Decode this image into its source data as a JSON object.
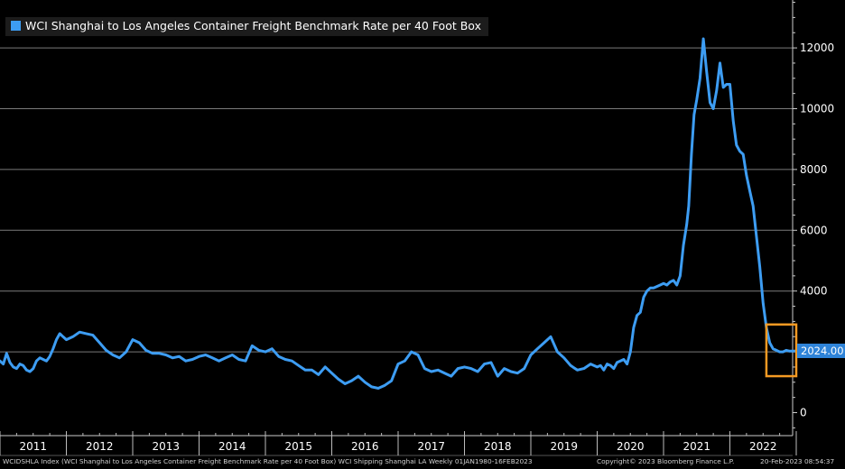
{
  "legend": {
    "label": "WCI Shanghai to Los Angeles Container Freight Benchmark Rate per 40 Foot Box",
    "swatch_color": "#3d9df3"
  },
  "last_value_label": "2024.00",
  "footer": {
    "source": "WCIDSHLA Index (WCI Shanghai to Los Angeles Container Freight Benchmark Rate per 40 Foot Box) WCI Shipping Shanghai LA  Weekly 01JAN1980-16FEB2023",
    "copyright": "Copyright© 2023 Bloomberg Finance L.P.",
    "timestamp": "20-Feb-2023 08:54:37"
  },
  "colors": {
    "background": "#000000",
    "line": "#3d9df3",
    "gridline": "#7a7a7a",
    "highlight_box": "#f59a23"
  },
  "chart_data": {
    "type": "line",
    "title": "",
    "xlabel": "",
    "ylabel": "",
    "y_axis_side": "right",
    "ylim": [
      -100,
      13600
    ],
    "xlim": [
      2011.0,
      2023.2
    ],
    "y_ticks": [
      0,
      2000,
      4000,
      6000,
      8000,
      10000,
      12000
    ],
    "y_tick_labels": [
      "0",
      "2000",
      "4000",
      "6000",
      "8000",
      "10000",
      "12000"
    ],
    "x_tick_labels": [
      "2011",
      "2012",
      "2013",
      "2014",
      "2015",
      "2016",
      "2017",
      "2018",
      "2019",
      "2020",
      "2021",
      "2022"
    ],
    "x_tick_centers": [
      2011.5,
      2012.5,
      2013.5,
      2014.5,
      2015.5,
      2016.5,
      2017.5,
      2018.5,
      2019.5,
      2020.5,
      2021.5,
      2022.5
    ],
    "grid": true,
    "legend_position": "top-left",
    "last_value": 2024.0,
    "highlight_box": {
      "x_range": [
        2022.55,
        2023.0
      ],
      "y_range": [
        1200,
        2900
      ]
    },
    "series": [
      {
        "name": "WCI Shanghai to Los Angeles Container Freight Benchmark Rate per 40 Foot Box",
        "x": [
          2011.0,
          2011.05,
          2011.1,
          2011.15,
          2011.2,
          2011.25,
          2011.3,
          2011.35,
          2011.4,
          2011.45,
          2011.5,
          2011.55,
          2011.6,
          2011.65,
          2011.7,
          2011.75,
          2011.8,
          2011.85,
          2011.9,
          2011.95,
          2012.0,
          2012.1,
          2012.2,
          2012.3,
          2012.4,
          2012.5,
          2012.6,
          2012.7,
          2012.8,
          2012.9,
          2013.0,
          2013.1,
          2013.2,
          2013.3,
          2013.4,
          2013.5,
          2013.6,
          2013.7,
          2013.8,
          2013.9,
          2014.0,
          2014.1,
          2014.2,
          2014.3,
          2014.4,
          2014.5,
          2014.6,
          2014.7,
          2014.8,
          2014.9,
          2015.0,
          2015.1,
          2015.2,
          2015.3,
          2015.4,
          2015.5,
          2015.6,
          2015.7,
          2015.8,
          2015.9,
          2016.0,
          2016.1,
          2016.2,
          2016.3,
          2016.4,
          2016.5,
          2016.6,
          2016.7,
          2016.8,
          2016.9,
          2017.0,
          2017.1,
          2017.2,
          2017.3,
          2017.4,
          2017.5,
          2017.6,
          2017.7,
          2017.8,
          2017.9,
          2018.0,
          2018.1,
          2018.2,
          2018.3,
          2018.4,
          2018.5,
          2018.6,
          2018.7,
          2018.8,
          2018.9,
          2019.0,
          2019.1,
          2019.2,
          2019.3,
          2019.4,
          2019.5,
          2019.6,
          2019.7,
          2019.8,
          2019.9,
          2020.0,
          2020.05,
          2020.1,
          2020.15,
          2020.2,
          2020.25,
          2020.3,
          2020.35,
          2020.4,
          2020.45,
          2020.5,
          2020.55,
          2020.6,
          2020.65,
          2020.7,
          2020.75,
          2020.8,
          2020.85,
          2020.9,
          2020.95,
          2021.0,
          2021.05,
          2021.1,
          2021.15,
          2021.2,
          2021.25,
          2021.3,
          2021.35,
          2021.38,
          2021.42,
          2021.46,
          2021.5,
          2021.55,
          2021.6,
          2021.65,
          2021.7,
          2021.75,
          2021.8,
          2021.85,
          2021.9,
          2021.95,
          2022.0,
          2022.05,
          2022.1,
          2022.15,
          2022.2,
          2022.25,
          2022.3,
          2022.35,
          2022.4,
          2022.45,
          2022.5,
          2022.55,
          2022.6,
          2022.65,
          2022.7,
          2022.75,
          2022.8,
          2022.85,
          2022.9,
          2022.95,
          2023.0,
          2023.05,
          2023.1
        ],
        "y": [
          1700,
          1600,
          1950,
          1650,
          1500,
          1450,
          1600,
          1550,
          1400,
          1350,
          1450,
          1700,
          1800,
          1750,
          1700,
          1850,
          2100,
          2400,
          2600,
          2500,
          2400,
          2500,
          2650,
          2600,
          2550,
          2300,
          2050,
          1900,
          1800,
          2000,
          2400,
          2300,
          2050,
          1950,
          1950,
          1900,
          1800,
          1850,
          1700,
          1750,
          1850,
          1900,
          1800,
          1700,
          1800,
          1900,
          1750,
          1700,
          2200,
          2050,
          2000,
          2100,
          1850,
          1750,
          1700,
          1550,
          1400,
          1400,
          1250,
          1500,
          1300,
          1100,
          950,
          1050,
          1200,
          1000,
          850,
          800,
          900,
          1050,
          1600,
          1700,
          2000,
          1900,
          1450,
          1350,
          1400,
          1300,
          1200,
          1450,
          1500,
          1450,
          1350,
          1600,
          1650,
          1200,
          1450,
          1350,
          1300,
          1450,
          1900,
          2100,
          2300,
          2500,
          2000,
          1800,
          1550,
          1400,
          1450,
          1600,
          1500,
          1550,
          1400,
          1600,
          1550,
          1450,
          1650,
          1700,
          1750,
          1600,
          2000,
          2800,
          3200,
          3300,
          3800,
          4000,
          4100,
          4100,
          4150,
          4200,
          4250,
          4200,
          4300,
          4350,
          4200,
          4500,
          5500,
          6200,
          6800,
          8500,
          9800,
          10300,
          11000,
          12300,
          11200,
          10200,
          10000,
          10600,
          11500,
          10700,
          10800,
          10800,
          9600,
          8800,
          8600,
          8500,
          7800,
          7300,
          6800,
          5800,
          4800,
          3600,
          2800,
          2300,
          2100,
          2050,
          2000,
          2000,
          2050,
          2024,
          2024,
          2024,
          2024,
          2024
        ]
      }
    ]
  }
}
